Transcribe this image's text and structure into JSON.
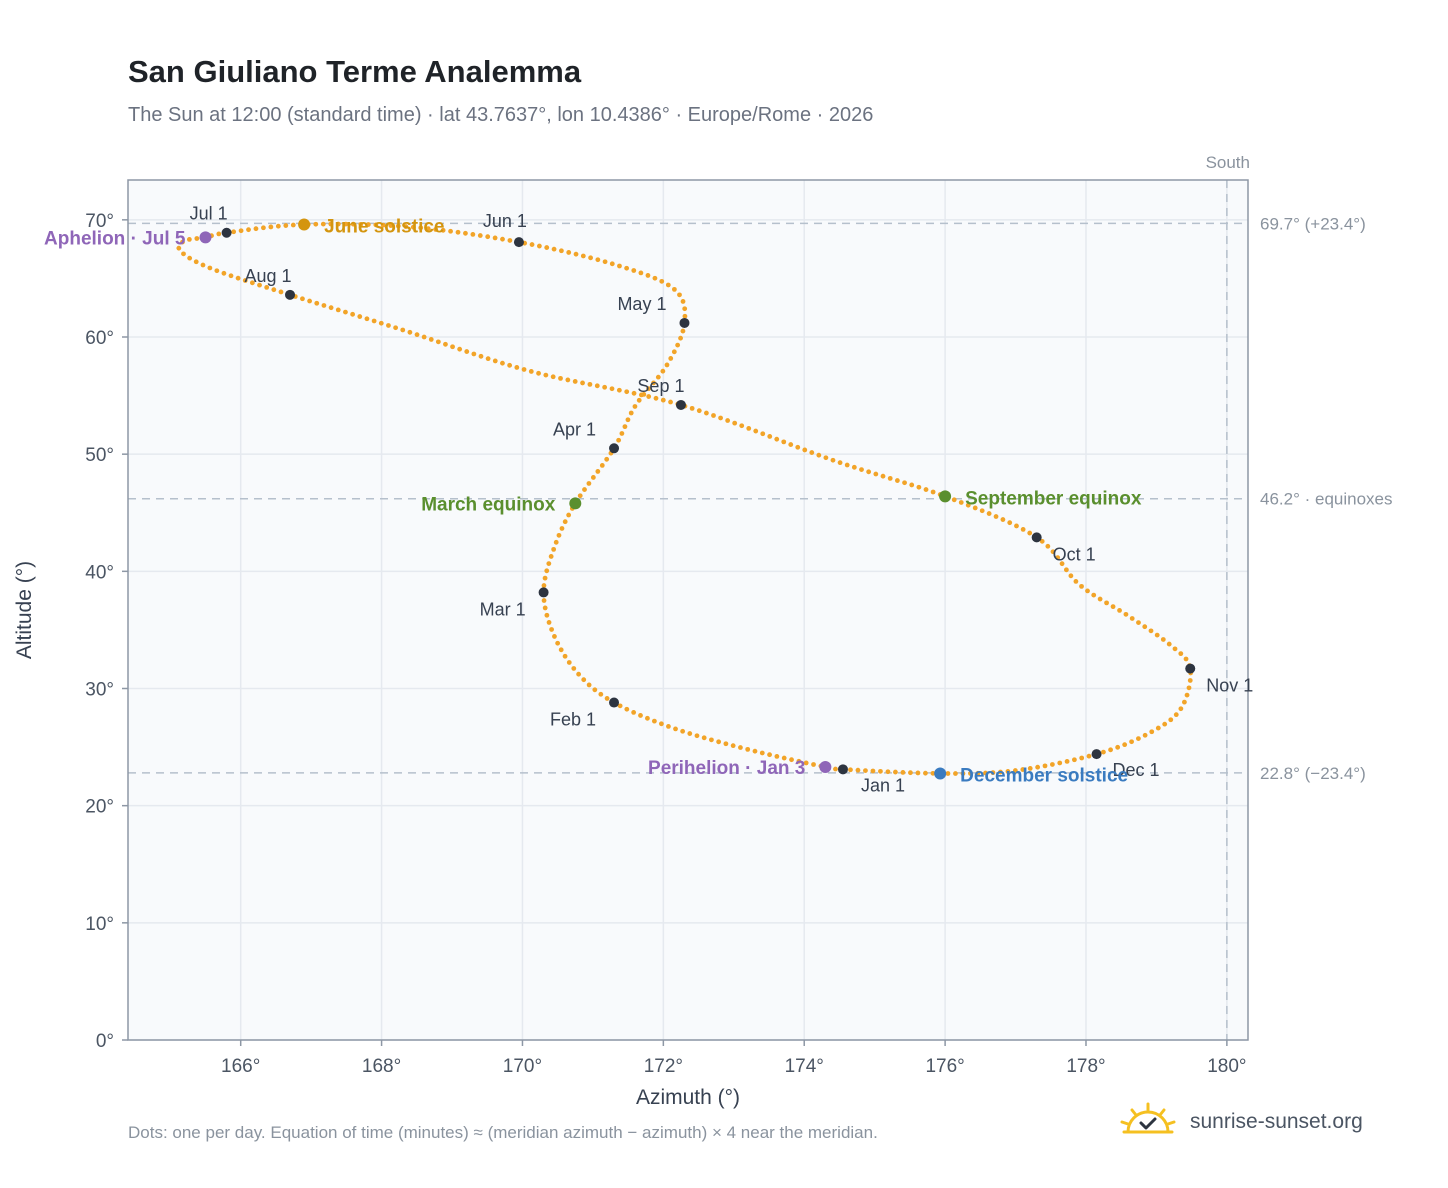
{
  "title": "San Giuliano Terme Analemma",
  "subtitle": "The Sun at 12:00 (standard time) · lat 43.7637°, lon 10.4386° · Europe/Rome · 2026",
  "footnote": "Dots: one per day. Equation of time (minutes) ≈ (meridian azimuth − azimuth) × 4 near the meridian.",
  "brand": {
    "name": "sunrise-sunset.org",
    "icon": "sun-check-icon"
  },
  "colors": {
    "curve": "#f2a428",
    "month_marker": "#2d3440",
    "equinox": "#5a8f2e",
    "solstice_june": "#d4950f",
    "solstice_december": "#3a7bc0",
    "apsis": "#8f66b8",
    "grid": "#e5e9ef",
    "reference": "#b5c0cc",
    "plot_bg": "#f8fafc",
    "axis": "#8d97a5"
  },
  "chart_data": {
    "type": "scatter",
    "title": "San Giuliano Terme Analemma",
    "xlabel": "Azimuth (°)",
    "ylabel": "Altitude (°)",
    "xlim": [
      164.4,
      180.3
    ],
    "ylim": [
      0,
      73.4
    ],
    "x_ticks": [
      166,
      168,
      170,
      172,
      174,
      176,
      178,
      180
    ],
    "x_tick_labels": [
      "166°",
      "168°",
      "170°",
      "172°",
      "174°",
      "176°",
      "178°",
      "180°"
    ],
    "y_ticks": [
      0,
      10,
      20,
      30,
      40,
      50,
      60,
      70
    ],
    "y_tick_labels": [
      "0°",
      "10°",
      "20°",
      "30°",
      "40°",
      "50°",
      "60°",
      "70°"
    ],
    "grid": true,
    "meridian": {
      "azimuth": 180,
      "label": "South"
    },
    "reference_lines": [
      {
        "altitude": 69.7,
        "label": "69.7° (+23.4°)"
      },
      {
        "altitude": 46.2,
        "label": "46.2° · equinoxes"
      },
      {
        "altitude": 22.8,
        "label": "22.8° (−23.4°)"
      }
    ],
    "curve_points": [
      [
        174.55,
        23.1
      ],
      [
        175.93,
        22.75
      ],
      [
        177.0,
        23.0
      ],
      [
        178.15,
        24.4
      ],
      [
        178.9,
        26.2
      ],
      [
        179.35,
        28.3
      ],
      [
        179.48,
        31.7
      ],
      [
        179.2,
        33.7
      ],
      [
        178.6,
        36.2
      ],
      [
        177.9,
        38.9
      ],
      [
        177.3,
        42.9
      ],
      [
        176.0,
        46.4
      ],
      [
        174.4,
        49.5
      ],
      [
        172.25,
        54.2
      ],
      [
        170.1,
        57.1
      ],
      [
        168.3,
        60.6
      ],
      [
        166.7,
        63.6
      ],
      [
        165.6,
        65.8
      ],
      [
        165.15,
        67.3
      ],
      [
        165.2,
        68.2
      ],
      [
        165.5,
        68.5
      ],
      [
        165.8,
        68.9
      ],
      [
        166.9,
        69.6
      ],
      [
        168.4,
        69.4
      ],
      [
        169.95,
        68.1
      ],
      [
        171.3,
        66.2
      ],
      [
        172.15,
        64.1
      ],
      [
        172.3,
        61.2
      ],
      [
        172.05,
        57.6
      ],
      [
        171.6,
        54.1
      ],
      [
        171.3,
        50.5
      ],
      [
        170.75,
        45.8
      ],
      [
        170.45,
        42.0
      ],
      [
        170.3,
        38.2
      ],
      [
        170.45,
        34.5
      ],
      [
        170.8,
        31.2
      ],
      [
        171.3,
        28.8
      ],
      [
        172.15,
        26.6
      ],
      [
        173.2,
        24.8
      ],
      [
        174.3,
        23.3
      ],
      [
        174.55,
        23.1
      ]
    ],
    "month_markers": [
      {
        "label": "Jan 1",
        "az": 174.55,
        "alt": 23.1
      },
      {
        "label": "Feb 1",
        "az": 171.3,
        "alt": 28.8
      },
      {
        "label": "Mar 1",
        "az": 170.3,
        "alt": 38.2
      },
      {
        "label": "Apr 1",
        "az": 171.3,
        "alt": 50.5
      },
      {
        "label": "May 1",
        "az": 172.3,
        "alt": 61.2
      },
      {
        "label": "Jun 1",
        "az": 169.95,
        "alt": 68.1
      },
      {
        "label": "Jul 1",
        "az": 165.8,
        "alt": 68.9
      },
      {
        "label": "Aug 1",
        "az": 166.7,
        "alt": 63.6
      },
      {
        "label": "Sep 1",
        "az": 172.25,
        "alt": 54.2
      },
      {
        "label": "Oct 1",
        "az": 177.3,
        "alt": 42.9
      },
      {
        "label": "Nov 1",
        "az": 179.48,
        "alt": 31.7
      },
      {
        "label": "Dec 1",
        "az": 178.15,
        "alt": 24.4
      }
    ],
    "events": [
      {
        "label": "March equinox",
        "az": 170.75,
        "alt": 45.8,
        "color_key": "equinox"
      },
      {
        "label": "June solstice",
        "az": 166.9,
        "alt": 69.6,
        "color_key": "solstice_june"
      },
      {
        "label": "September equinox",
        "az": 176.0,
        "alt": 46.4,
        "color_key": "equinox"
      },
      {
        "label": "December solstice",
        "az": 175.93,
        "alt": 22.75,
        "color_key": "solstice_december"
      },
      {
        "label": "Perihelion · Jan 3",
        "az": 174.3,
        "alt": 23.3,
        "color_key": "apsis"
      },
      {
        "label": "Aphelion · Jul 5",
        "az": 165.5,
        "alt": 68.5,
        "color_key": "apsis"
      }
    ]
  }
}
